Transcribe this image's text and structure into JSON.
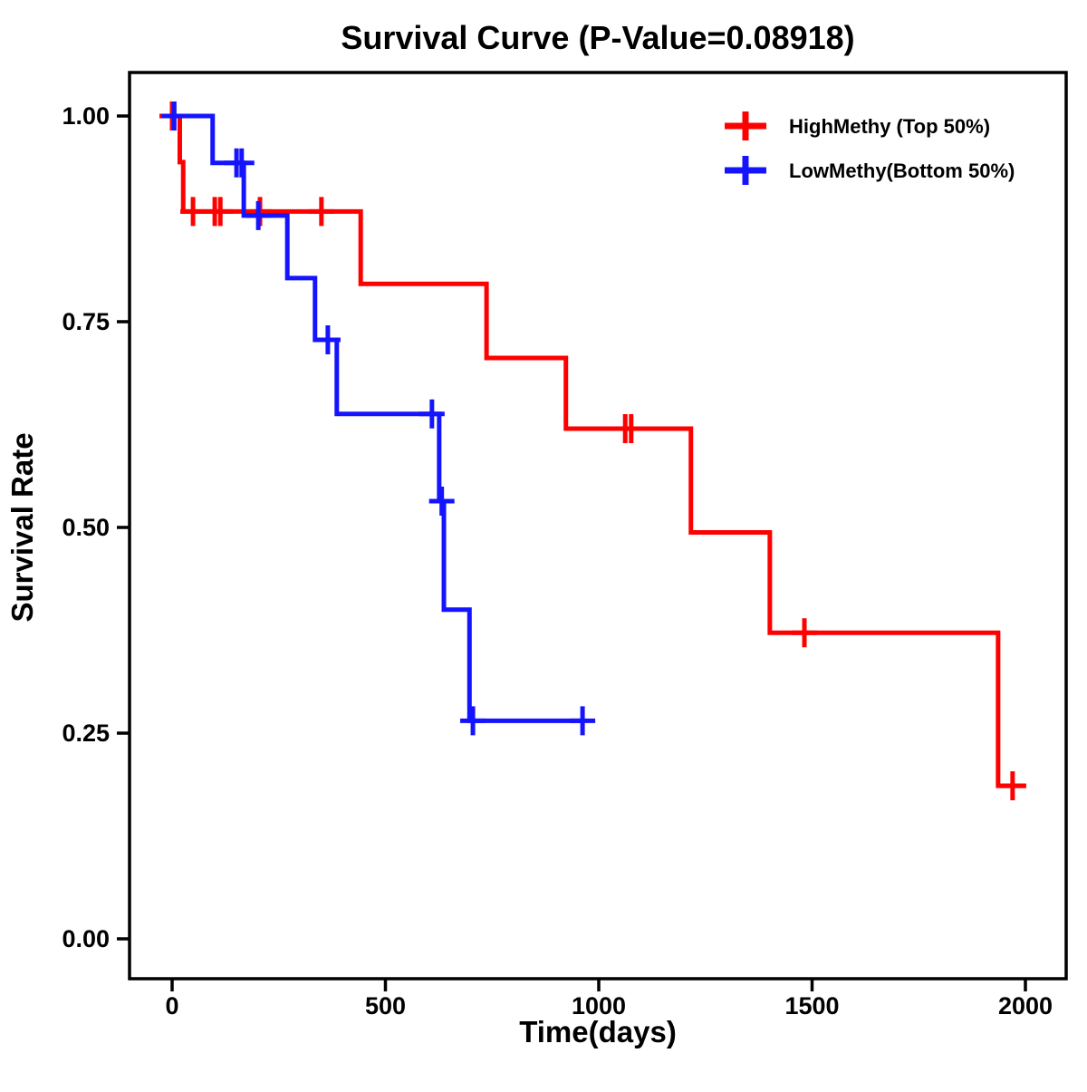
{
  "chart_data": {
    "type": "line",
    "subtype": "kaplan-meier-step",
    "title": "Survival Curve (P-Value=0.08918)",
    "p_value": "0.08918",
    "xlabel": "Time(days)",
    "ylabel": "Survival Rate",
    "xlim": [
      -98,
      2095
    ],
    "ylim": [
      -0.05,
      1.05
    ],
    "grid": false,
    "x_ticks": {
      "values": [
        0,
        500,
        1000,
        1500,
        2000
      ],
      "labels": [
        "0",
        "500",
        "1000",
        "1500",
        "2000"
      ]
    },
    "y_ticks": {
      "values": [
        0,
        0.25,
        0.5,
        0.75,
        1.0
      ],
      "labels": [
        "0.00",
        "0.25",
        "0.50",
        "0.75",
        "1.00"
      ]
    },
    "legend": {
      "position": "top-right",
      "marker": "plus"
    },
    "colors": {
      "high_methy": "#ff0000",
      "low_methy": "#1414ff",
      "axis": "#000000",
      "background": "#ffffff"
    },
    "series": [
      {
        "name": "HighMethy (Top 50%)",
        "color": "#ff0000",
        "steps": [
          [
            0,
            1.0
          ],
          [
            18,
            0.944
          ],
          [
            26,
            0.884
          ],
          [
            442,
            0.796
          ],
          [
            737,
            0.706
          ],
          [
            923,
            0.62
          ],
          [
            1216,
            0.494
          ],
          [
            1401,
            0.372
          ],
          [
            1936,
            0.186
          ]
        ],
        "end_day": 2002,
        "censors": [
          [
            0,
            1.0
          ],
          [
            49,
            0.884
          ],
          [
            100,
            0.884
          ],
          [
            113,
            0.884
          ],
          [
            206,
            0.884
          ],
          [
            350,
            0.884
          ],
          [
            1062,
            0.62
          ],
          [
            1076,
            0.62
          ],
          [
            1482,
            0.372
          ],
          [
            1970,
            0.186
          ]
        ]
      },
      {
        "name": "LowMethy(Bottom 50%)",
        "color": "#1414ff",
        "steps": [
          [
            0,
            1.0
          ],
          [
            95,
            0.943
          ],
          [
            168,
            0.879
          ],
          [
            270,
            0.803
          ],
          [
            335,
            0.728
          ],
          [
            386,
            0.638
          ],
          [
            626,
            0.532
          ],
          [
            637,
            0.4
          ],
          [
            697,
            0.265
          ]
        ],
        "end_day": 962,
        "censors": [
          [
            5,
            1.0
          ],
          [
            151,
            0.943
          ],
          [
            163,
            0.943
          ],
          [
            202,
            0.879
          ],
          [
            365,
            0.728
          ],
          [
            609,
            0.638
          ],
          [
            632,
            0.532
          ],
          [
            705,
            0.265
          ],
          [
            962,
            0.265
          ]
        ]
      }
    ]
  }
}
